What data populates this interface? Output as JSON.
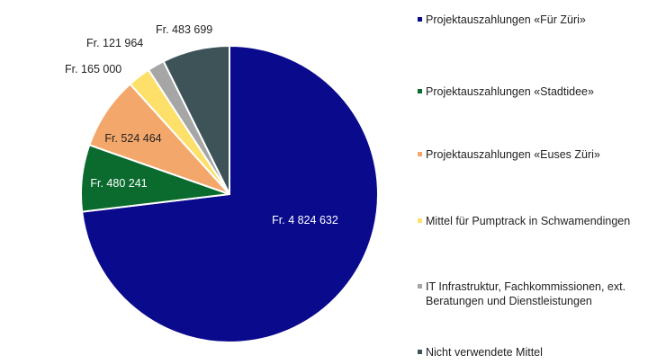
{
  "chart_data": {
    "type": "pie",
    "slices": [
      {
        "label": "Fr. 4 824 632",
        "value": 4824632,
        "legend": "Projektauszahlungen «Für Züri»",
        "color": "#0a0a8c"
      },
      {
        "label": "Fr. 480 241",
        "value": 480241,
        "legend": "Projektauszahlungen «Stadtidee»",
        "color": "#0b6b2e"
      },
      {
        "label": "Fr. 524 464",
        "value": 524464,
        "legend": "Projektauszahlungen «Euses Züri»",
        "color": "#f4a76a"
      },
      {
        "label": "Fr. 165 000",
        "value": 165000,
        "legend": "Mittel für Pumptrack in Schwamendingen",
        "color": "#fde06a"
      },
      {
        "label": "Fr. 121 964",
        "value": 121964,
        "legend": "IT Infrastruktur, Fachkommissionen, ext. Beratungen und Dienstleistungen",
        "color": "#a6a6a6"
      },
      {
        "label": "Fr. 483 699",
        "value": 483699,
        "legend": "Nicht verwendete Mittel",
        "color": "#3e5358"
      }
    ],
    "legend_placement": "right"
  }
}
